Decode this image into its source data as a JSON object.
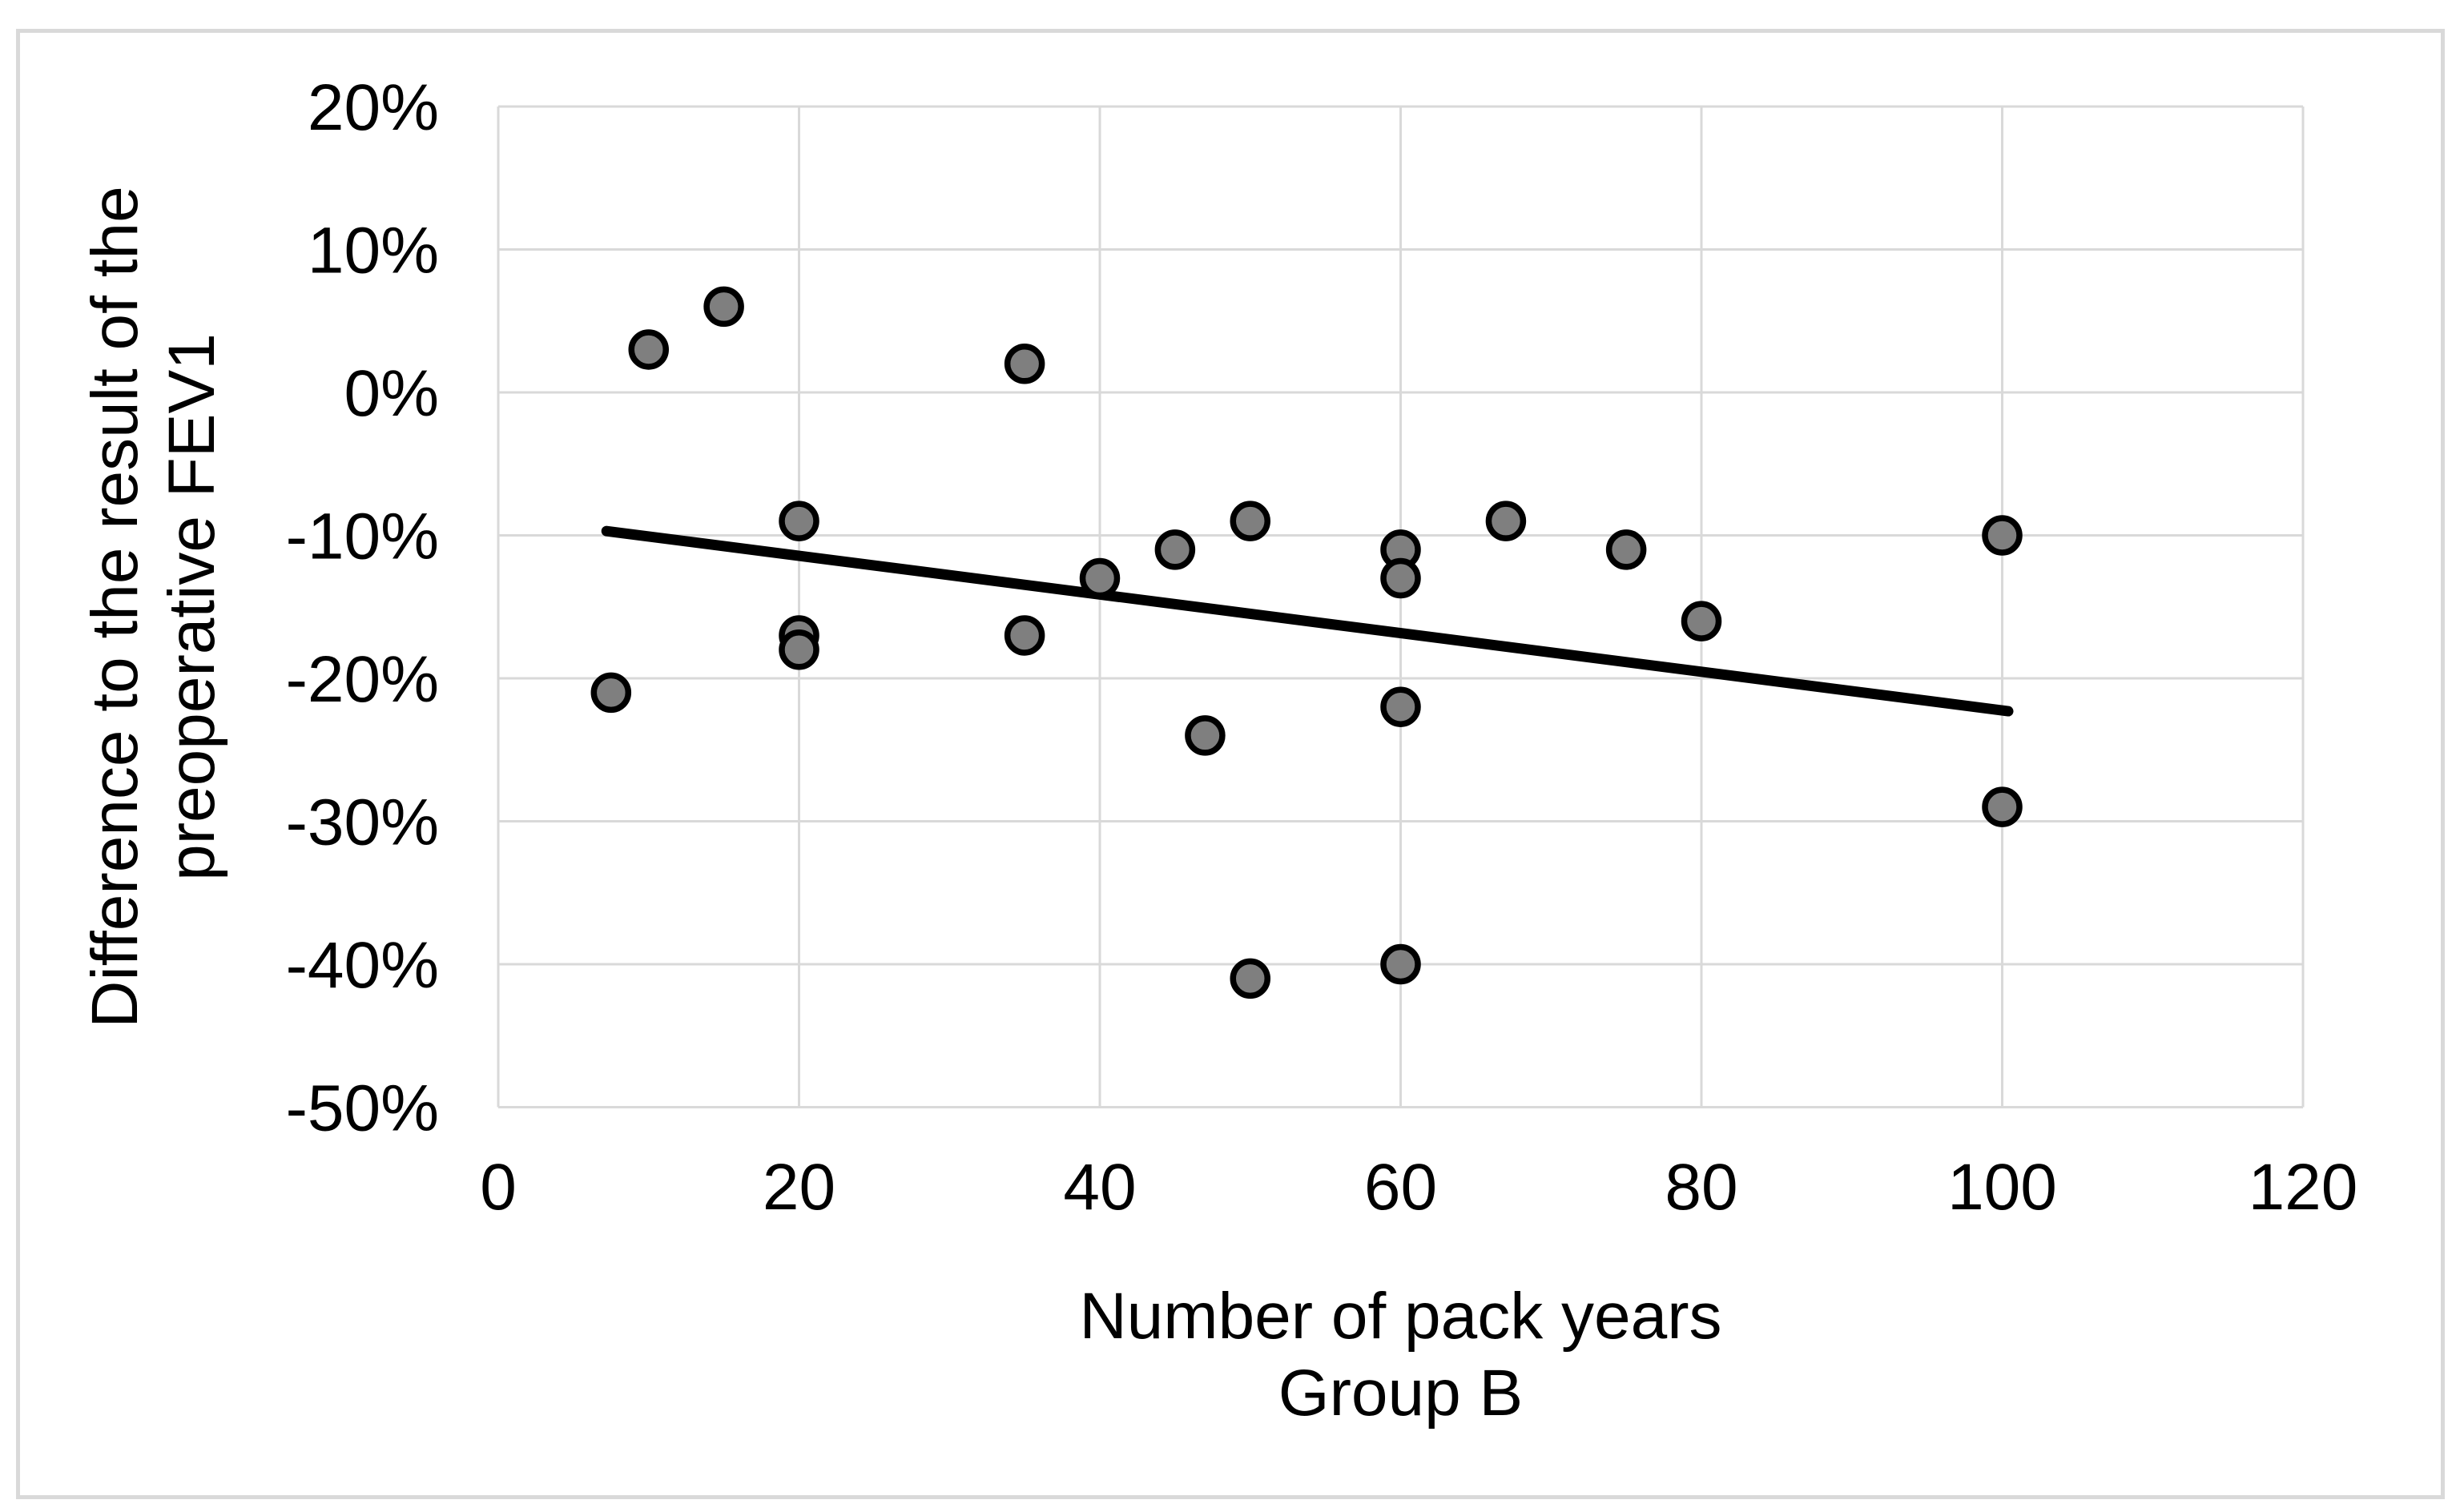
{
  "figure": {
    "background": "#FFFFFF",
    "border_color": "#D9D9D9"
  },
  "chart_data": {
    "type": "scatter",
    "xlabel_line1": "Number of pack years",
    "xlabel_line2": "Group B",
    "ylabel_line1": "Difference to the result of the",
    "ylabel_line2": "preoperative FEV1",
    "xlim": [
      0,
      120
    ],
    "ylim": [
      -50,
      20
    ],
    "x_ticks": [
      0,
      20,
      40,
      60,
      80,
      100,
      120
    ],
    "x_tick_labels": [
      "0",
      "20",
      "40",
      "60",
      "80",
      "100",
      "120"
    ],
    "y_ticks": [
      20,
      10,
      0,
      -10,
      -20,
      -30,
      -40,
      -50
    ],
    "y_tick_labels": [
      "20%",
      "10%",
      "0%",
      "-10%",
      "-20%",
      "-30%",
      "-40%",
      "-50%"
    ],
    "grid": true,
    "legend": false,
    "series": [
      {
        "name": "Group B",
        "marker": "circle",
        "points": [
          [
            7.5,
            -21
          ],
          [
            10,
            3
          ],
          [
            15,
            6
          ],
          [
            20,
            -9
          ],
          [
            20,
            -17
          ],
          [
            20,
            -18
          ],
          [
            35,
            2
          ],
          [
            35,
            -17
          ],
          [
            40,
            -13
          ],
          [
            45,
            -11
          ],
          [
            47,
            -24
          ],
          [
            50,
            -9
          ],
          [
            50,
            -41
          ],
          [
            60,
            -11
          ],
          [
            60,
            -13
          ],
          [
            60,
            -22
          ],
          [
            60,
            -40
          ],
          [
            67,
            -9
          ],
          [
            75,
            -11
          ],
          [
            80,
            -16
          ],
          [
            100,
            -10
          ],
          [
            100,
            -29
          ]
        ]
      }
    ],
    "trendline": {
      "x1": 7.2,
      "y1": -9.7,
      "x2": 100.4,
      "y2": -22.3
    },
    "colors": {
      "marker_fill": "#7F7F7F",
      "marker_stroke": "#000000",
      "trendline": "#000000",
      "gridline": "#D9D9D9",
      "axis_text": "#000000"
    }
  }
}
